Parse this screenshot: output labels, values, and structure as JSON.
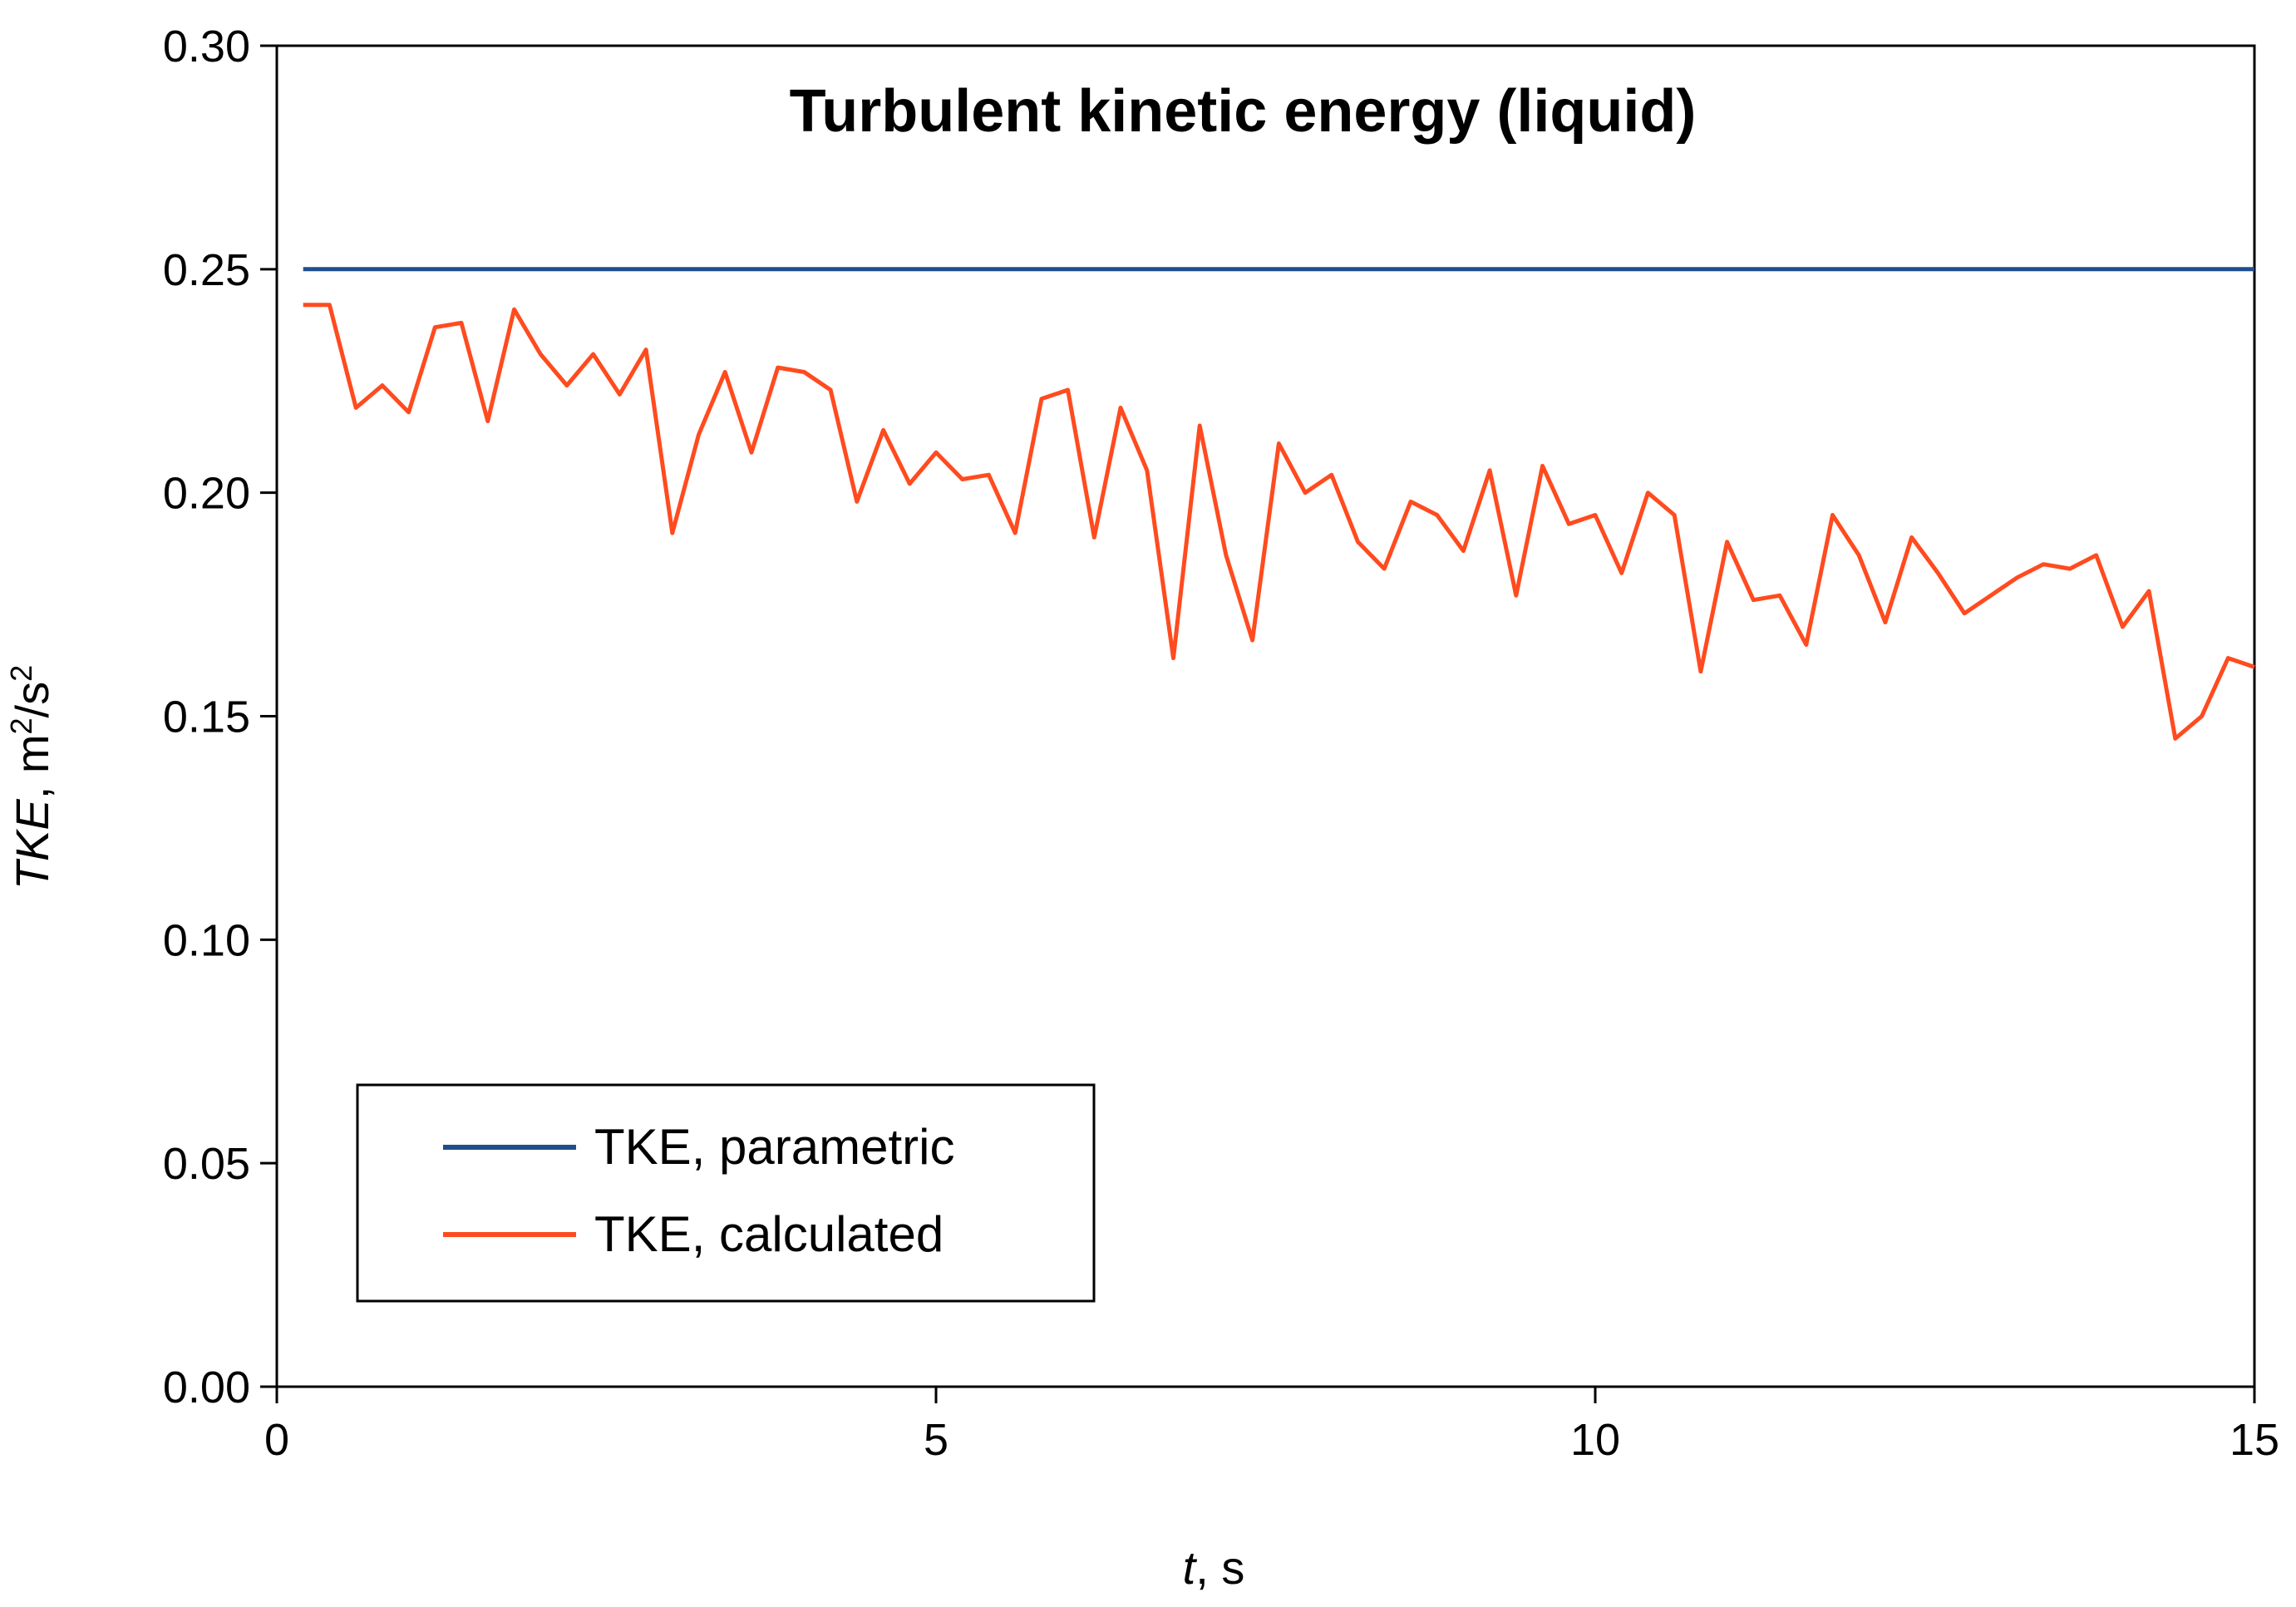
{
  "chart_data": {
    "type": "line",
    "title": "Turbulent kinetic energy (liquid)",
    "xlabel": {
      "var": "t",
      "unit": ", s"
    },
    "ylabel": {
      "var": "TKE",
      "unit_pre": ", m",
      "sup1": "2",
      "unit_mid": "/s",
      "sup2": "2"
    },
    "xlim": [
      0,
      15
    ],
    "ylim": [
      0,
      0.3
    ],
    "xticks": [
      0,
      5,
      10,
      15
    ],
    "yticks": [
      0.0,
      0.05,
      0.1,
      0.15,
      0.2,
      0.25,
      0.3
    ],
    "xtick_labels": [
      "0",
      "5",
      "10",
      "15"
    ],
    "ytick_labels": [
      "0.00",
      "0.05",
      "0.10",
      "0.15",
      "0.20",
      "0.25",
      "0.30"
    ],
    "grid": false,
    "legend": {
      "placement": "bottom-left"
    },
    "series": [
      {
        "name": "TKE, parametric",
        "color": "#1f4e8c",
        "x": [
          0.2,
          15
        ],
        "y": [
          0.25,
          0.25
        ]
      },
      {
        "name": "TKE, calculated",
        "color": "#ff4b1f",
        "x": [
          0.2,
          0.4,
          0.6,
          0.8,
          1.0,
          1.2,
          1.4,
          1.6,
          1.8,
          2.0,
          2.2,
          2.4,
          2.6,
          2.8,
          3.0,
          3.2,
          3.4,
          3.6,
          3.8,
          4.0,
          4.2,
          4.4,
          4.6,
          4.8,
          5.0,
          5.2,
          5.4,
          5.6,
          5.8,
          6.0,
          6.2,
          6.4,
          6.6,
          6.8,
          7.0,
          7.2,
          7.4,
          7.6,
          7.8,
          8.0,
          8.2,
          8.4,
          8.6,
          8.8,
          9.0,
          9.2,
          9.4,
          9.6,
          9.8,
          10.0,
          10.2,
          10.4,
          10.6,
          10.8,
          11.0,
          11.2,
          11.4,
          11.6,
          11.8,
          12.0,
          12.2,
          12.4,
          12.6,
          12.8,
          13.0,
          13.2,
          13.4,
          13.6,
          13.8,
          14.0,
          14.2,
          14.4,
          14.6,
          14.8,
          15.0
        ],
        "y": [
          0.242,
          0.242,
          0.219,
          0.224,
          0.218,
          0.237,
          0.238,
          0.216,
          0.241,
          0.231,
          0.224,
          0.231,
          0.222,
          0.232,
          0.191,
          0.213,
          0.227,
          0.209,
          0.228,
          0.227,
          0.223,
          0.198,
          0.214,
          0.202,
          0.209,
          0.203,
          0.204,
          0.191,
          0.221,
          0.223,
          0.19,
          0.219,
          0.205,
          0.163,
          0.215,
          0.186,
          0.167,
          0.211,
          0.2,
          0.204,
          0.189,
          0.183,
          0.198,
          0.195,
          0.187,
          0.205,
          0.177,
          0.206,
          0.193,
          0.195,
          0.182,
          0.2,
          0.195,
          0.16,
          0.189,
          0.176,
          0.177,
          0.166,
          0.195,
          0.186,
          0.171,
          0.19,
          0.182,
          0.173,
          0.177,
          0.181,
          0.184,
          0.183,
          0.186,
          0.17,
          0.178,
          0.145,
          0.15,
          0.163,
          0.161
        ]
      }
    ]
  }
}
